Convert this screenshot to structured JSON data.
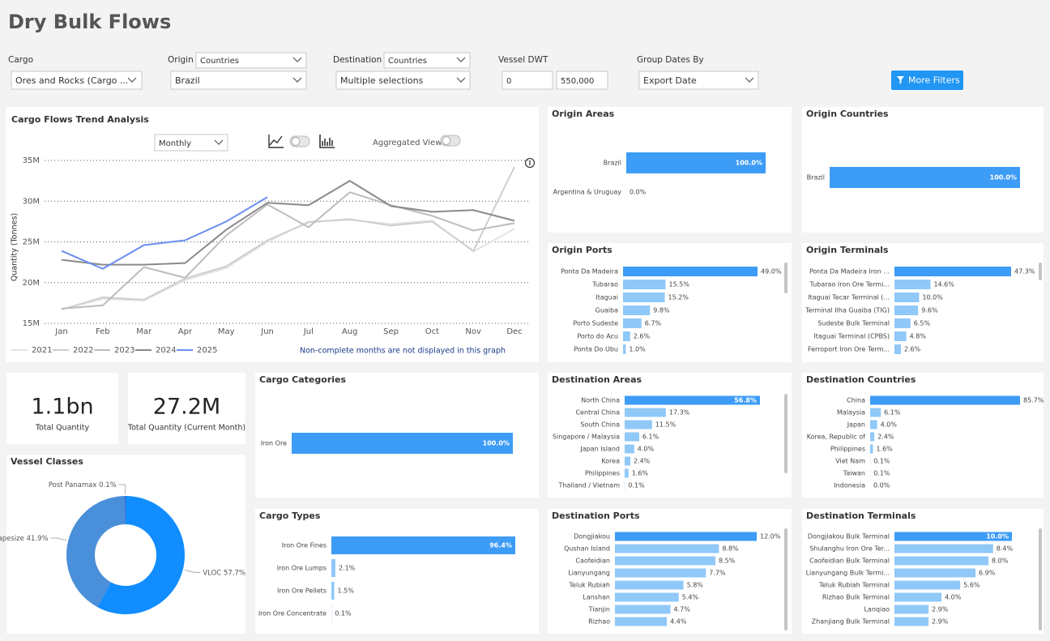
{
  "header": {
    "title": "Dry Bulk Flows"
  },
  "filters": [
    {
      "label": "Cargo",
      "values": [
        "Ores and Rocks (Cargo ..."
      ]
    },
    {
      "label": "Origin",
      "values": [
        "Countries",
        "Brazil"
      ]
    },
    {
      "label": "Destination",
      "values": [
        "Countries",
        "Multiple selections"
      ]
    },
    {
      "label": "Vessel DWT",
      "values": [
        "0",
        "550,000"
      ]
    },
    {
      "label": "Group Dates By",
      "values": [
        "Export Date"
      ]
    }
  ],
  "button": "More Filters",
  "kpis": [
    {
      "value": "1.1bn",
      "label": "Total Quantity"
    },
    {
      "value": "27.2M",
      "label": "Total Quantity (Current Month)"
    }
  ],
  "chart_data": [
    {
      "type": "line",
      "title": "Cargo Flows Trend Analysis",
      "period": "Monthly",
      "toggle_label": "Aggregated View",
      "y_label": "Quantity (Tonnes)",
      "note": "Non-complete months are not displayed in this graph",
      "categories": [
        "Jan",
        "Feb",
        "Mar",
        "Apr",
        "May",
        "Jun",
        "Jul",
        "Aug",
        "Sep",
        "Oct",
        "Nov",
        "Dec"
      ],
      "ylim": [
        15000000,
        35000000
      ],
      "yticks": [
        {
          "value": 15000000,
          "label": "15M"
        },
        {
          "value": 20000000,
          "label": "20M"
        },
        {
          "value": 25000000,
          "label": "25M"
        },
        {
          "value": 30000000,
          "label": "30M"
        },
        {
          "value": 35000000,
          "label": "35M"
        }
      ],
      "grid": true,
      "series": [
        {
          "name": "2021",
          "color": "#e3e3e3",
          "values": [
            16700000,
            18000000,
            17800000,
            20300000,
            21800000,
            25000000,
            27500000,
            27700000,
            27200000,
            27600000,
            23800000,
            26600000
          ]
        },
        {
          "name": "2022",
          "color": "#cfcfcf",
          "values": [
            16700000,
            18200000,
            17900000,
            20500000,
            22000000,
            25200000,
            27400000,
            27800000,
            27000000,
            27500000,
            23900000,
            34200000
          ]
        },
        {
          "name": "2023",
          "color": "#bcbcbc",
          "values": [
            16800000,
            17200000,
            21900000,
            20600000,
            25800000,
            29600000,
            26800000,
            31100000,
            29500000,
            28200000,
            26400000,
            27300000
          ]
        },
        {
          "name": "2024",
          "color": "#8a8a8a",
          "values": [
            22800000,
            22200000,
            22200000,
            22400000,
            26500000,
            29800000,
            29500000,
            32500000,
            29400000,
            28700000,
            28900000,
            27600000
          ]
        },
        {
          "name": "2025",
          "color": "#6b8ef0",
          "values": [
            23900000,
            21700000,
            24600000,
            25200000,
            27500000,
            30500000,
            null,
            null,
            null,
            null,
            null,
            null
          ]
        }
      ]
    },
    {
      "type": "pie",
      "title": "Vessel Classes",
      "categories": [
        "VLOC",
        "Capesize",
        "Post Panamax"
      ],
      "values": [
        57.7,
        41.9,
        0.1
      ],
      "value_labels": [
        "57.7%",
        "41.9%",
        "0.1%"
      ],
      "colors": [
        "#118dff",
        "#4a8fd9",
        "#12239e"
      ]
    },
    {
      "type": "bar",
      "orientation": "horizontal",
      "title": "Origin Areas",
      "categories": [
        "Brazil",
        "Argentina & Uruguay"
      ],
      "values": [
        100.0,
        0.0
      ],
      "value_labels": [
        "100.0%",
        "0.0%"
      ],
      "color": "#3d9cf5",
      "other_color": "#90c8f8"
    },
    {
      "type": "bar",
      "orientation": "horizontal",
      "title": "Origin Countries",
      "categories": [
        "Brazil"
      ],
      "values": [
        100.0
      ],
      "value_labels": [
        "100.0%"
      ],
      "color": "#3d9cf5",
      "other_color": "#90c8f8"
    },
    {
      "type": "bar",
      "orientation": "horizontal",
      "title": "Origin Ports",
      "categories": [
        "Ponta Da Madeira",
        "Tubarao",
        "Itaguai",
        "Guaiba",
        "Porto Sudeste",
        "Porto do Acu",
        "Ponta Do Ubu"
      ],
      "values": [
        49.0,
        15.5,
        15.2,
        9.8,
        6.7,
        2.6,
        1.0
      ],
      "value_labels": [
        "49.0%",
        "15.5%",
        "15.2%",
        "9.8%",
        "6.7%",
        "2.6%",
        "1.0%"
      ],
      "color": "#3d9cf5",
      "other_color": "#90c8f8"
    },
    {
      "type": "bar",
      "orientation": "horizontal",
      "title": "Origin Terminals",
      "categories": [
        "Ponta Da Madeira Iron ...",
        "Tubarao Iron Ore Termi...",
        "Itaguai Tecar Terminal (...",
        "Terminal Ilha Guaiba (TIG)",
        "Sudeste Bulk Terminal",
        "Itaguai Terminal (CPBS)",
        "Ferroport Iron Ore Term..."
      ],
      "values": [
        47.3,
        14.6,
        10.0,
        9.6,
        6.5,
        4.8,
        2.6
      ],
      "value_labels": [
        "47.3%",
        "14.6%",
        "10.0%",
        "9.6%",
        "6.5%",
        "4.8%",
        "2.6%"
      ],
      "color": "#3d9cf5",
      "other_color": "#90c8f8"
    },
    {
      "type": "bar",
      "orientation": "horizontal",
      "title": "Cargo Categories",
      "categories": [
        "Iron Ore"
      ],
      "values": [
        100.0
      ],
      "value_labels": [
        "100.0%"
      ],
      "color": "#3d9cf5",
      "other_color": "#90c8f8"
    },
    {
      "type": "bar",
      "orientation": "horizontal",
      "title": "Cargo Types",
      "categories": [
        "Iron Ore Fines",
        "Iron Ore Lumps",
        "Iron Ore Pellets",
        "Iron Ore Concentrate"
      ],
      "values": [
        96.4,
        2.1,
        1.5,
        0.1
      ],
      "value_labels": [
        "96.4%",
        "2.1%",
        "1.5%",
        "0.1%"
      ],
      "color": "#3d9cf5",
      "other_color": "#90c8f8"
    },
    {
      "type": "bar",
      "orientation": "horizontal",
      "title": "Destination Areas",
      "categories": [
        "North China",
        "Central China",
        "South China",
        "Singapore / Malaysia",
        "Japan Island",
        "Korea",
        "Philippines",
        "Thailand / Vietnam"
      ],
      "values": [
        56.8,
        17.3,
        11.5,
        6.1,
        4.0,
        2.4,
        1.6,
        0.1
      ],
      "value_labels": [
        "56.8%",
        "17.3%",
        "11.5%",
        "6.1%",
        "4.0%",
        "2.4%",
        "1.6%",
        "0.1%"
      ],
      "color": "#3d9cf5",
      "other_color": "#90c8f8"
    },
    {
      "type": "bar",
      "orientation": "horizontal",
      "title": "Destination Countries",
      "categories": [
        "China",
        "Malaysia",
        "Japan",
        "Korea, Republic of",
        "Philippines",
        "Viet Nam",
        "Taiwan",
        "Indonesia"
      ],
      "values": [
        85.7,
        6.1,
        4.0,
        2.4,
        1.6,
        0.1,
        0.1,
        0.0
      ],
      "value_labels": [
        "85.7%",
        "6.1%",
        "4.0%",
        "2.4%",
        "1.6%",
        "0.1%",
        "0.1%",
        "0.0%"
      ],
      "color": "#3d9cf5",
      "other_color": "#90c8f8"
    },
    {
      "type": "bar",
      "orientation": "horizontal",
      "title": "Destination Ports",
      "categories": [
        "Dongjiakou",
        "Qushan Island",
        "Caofeidian",
        "Lianyungang",
        "Teluk Rubiah",
        "Lanshan",
        "Tianjin",
        "Rizhao"
      ],
      "values": [
        12.0,
        8.8,
        8.5,
        7.7,
        5.8,
        5.4,
        4.7,
        4.4
      ],
      "value_labels": [
        "12.0%",
        "8.8%",
        "8.5%",
        "7.7%",
        "5.8%",
        "5.4%",
        "4.7%",
        "4.4%"
      ],
      "color": "#3d9cf5",
      "other_color": "#90c8f8"
    },
    {
      "type": "bar",
      "orientation": "horizontal",
      "title": "Destination Terminals",
      "categories": [
        "Dongjiakou Bulk Terminal",
        "Shulanghu Iron Ore Ter...",
        "Caofeidian Bulk Terminal",
        "Lianyungang Bulk Termi...",
        "Teluk Rubiah Terminal",
        "Rizhao Bulk Terminal",
        "Lanqiao",
        "Zhanjiang Bulk Terminal"
      ],
      "values": [
        10.0,
        8.4,
        8.0,
        6.9,
        5.6,
        4.0,
        2.9,
        2.9
      ],
      "value_labels": [
        "10.0%",
        "8.4%",
        "8.0%",
        "6.9%",
        "5.6%",
        "4.0%",
        "2.9%",
        "2.9%"
      ],
      "color": "#3d9cf5",
      "other_color": "#90c8f8"
    }
  ]
}
